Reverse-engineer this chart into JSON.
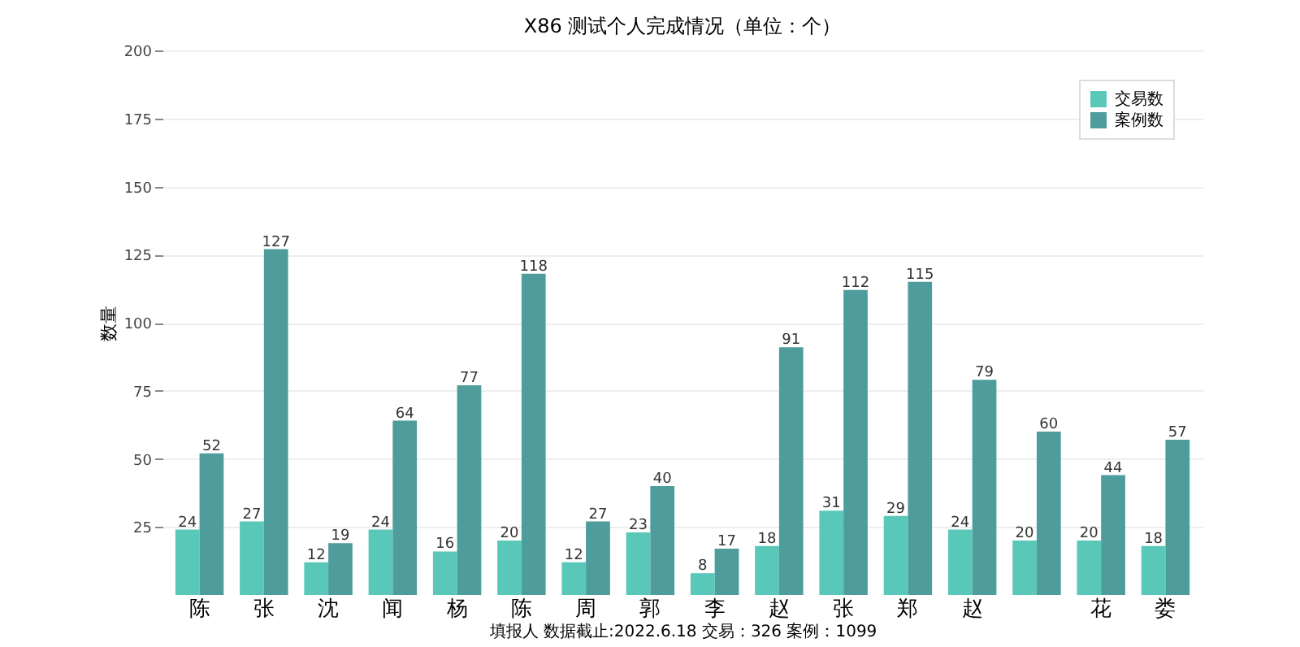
{
  "chart_data": {
    "type": "bar",
    "title": "X86 测试个人完成情况（单位：个）",
    "xlabel": "填报人      数据截止:2022.6.18    交易：326    案例：1099",
    "ylabel": "数量",
    "categories": [
      "陈",
      "张",
      "沈",
      "闻",
      "杨",
      "陈",
      "周",
      "郭",
      "李",
      "赵",
      "张",
      "郑",
      "赵",
      null,
      "花",
      "娄"
    ],
    "series": [
      {
        "name": "交易数",
        "color": "#5ac8b8",
        "values": [
          24,
          27,
          12,
          24,
          16,
          20,
          12,
          23,
          8,
          18,
          31,
          29,
          24,
          20,
          20,
          18
        ]
      },
      {
        "name": "案例数",
        "color": "#4e9c9c",
        "values": [
          52,
          127,
          19,
          64,
          77,
          118,
          27,
          40,
          17,
          91,
          112,
          115,
          79,
          60,
          44,
          57
        ]
      }
    ],
    "ylim": [
      0,
      200
    ],
    "yticks": [
      25,
      50,
      75,
      100,
      125,
      150,
      175,
      200
    ],
    "grid": "y",
    "legend": "top right",
    "data_labels": true
  }
}
